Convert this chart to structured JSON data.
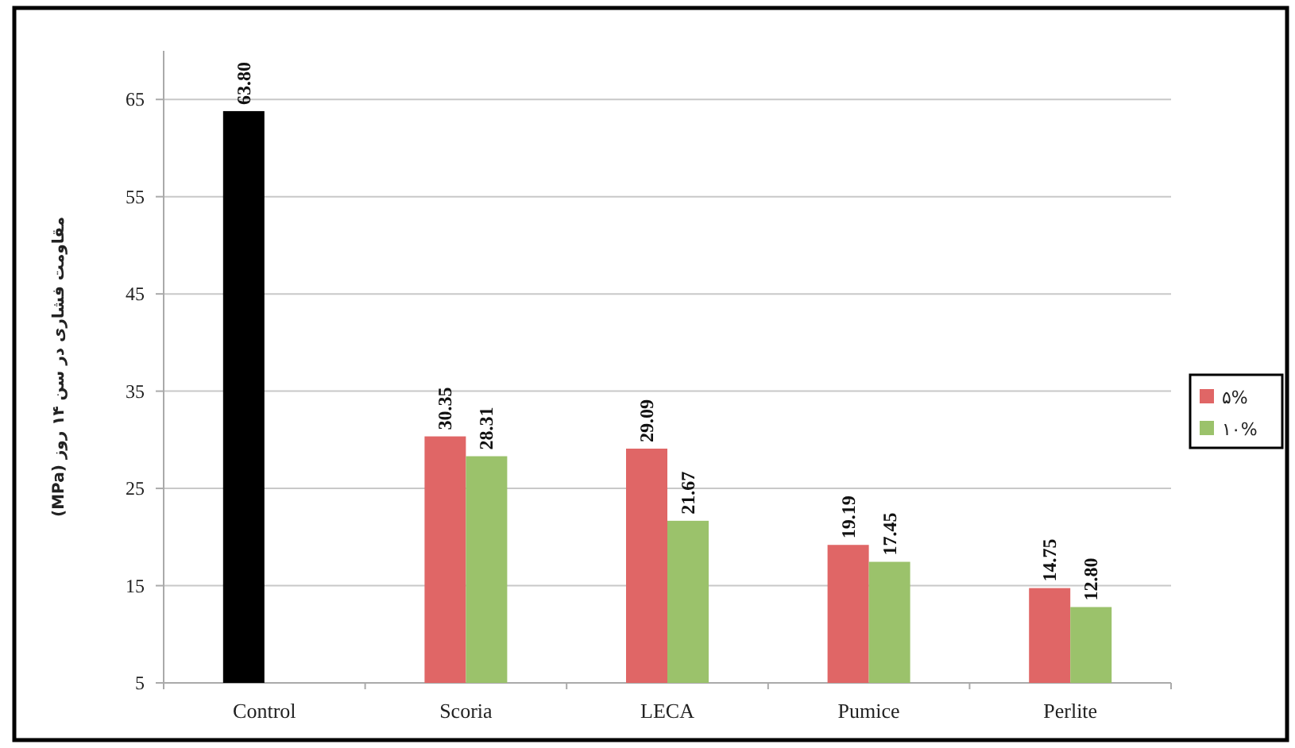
{
  "chart_data": {
    "type": "bar",
    "ylabel": "مقاومت فشاری در سن ۱۴ روز (MPa)",
    "categories": [
      "Control",
      "Scoria",
      "LECA",
      "Pumice",
      "Perlite"
    ],
    "series": [
      {
        "name": "۵%",
        "color": "#e06666",
        "colors": [
          "#000000",
          "#e06666",
          "#e06666",
          "#e06666",
          "#e06666"
        ],
        "values": [
          63.8,
          30.35,
          29.09,
          19.19,
          14.75
        ],
        "value_labels": [
          "63.80",
          "30.35",
          "29.09",
          "19.19",
          "14.75"
        ]
      },
      {
        "name": "۱۰%",
        "color": "#9bc26b",
        "values": [
          null,
          28.31,
          21.67,
          17.45,
          12.8
        ],
        "value_labels": [
          null,
          "28.31",
          "21.67",
          "17.45",
          "12.80"
        ]
      }
    ],
    "ylim": [
      5,
      70
    ],
    "yticks": [
      5,
      15,
      25,
      35,
      45,
      55,
      65
    ],
    "grid": "y",
    "legend": "right"
  }
}
